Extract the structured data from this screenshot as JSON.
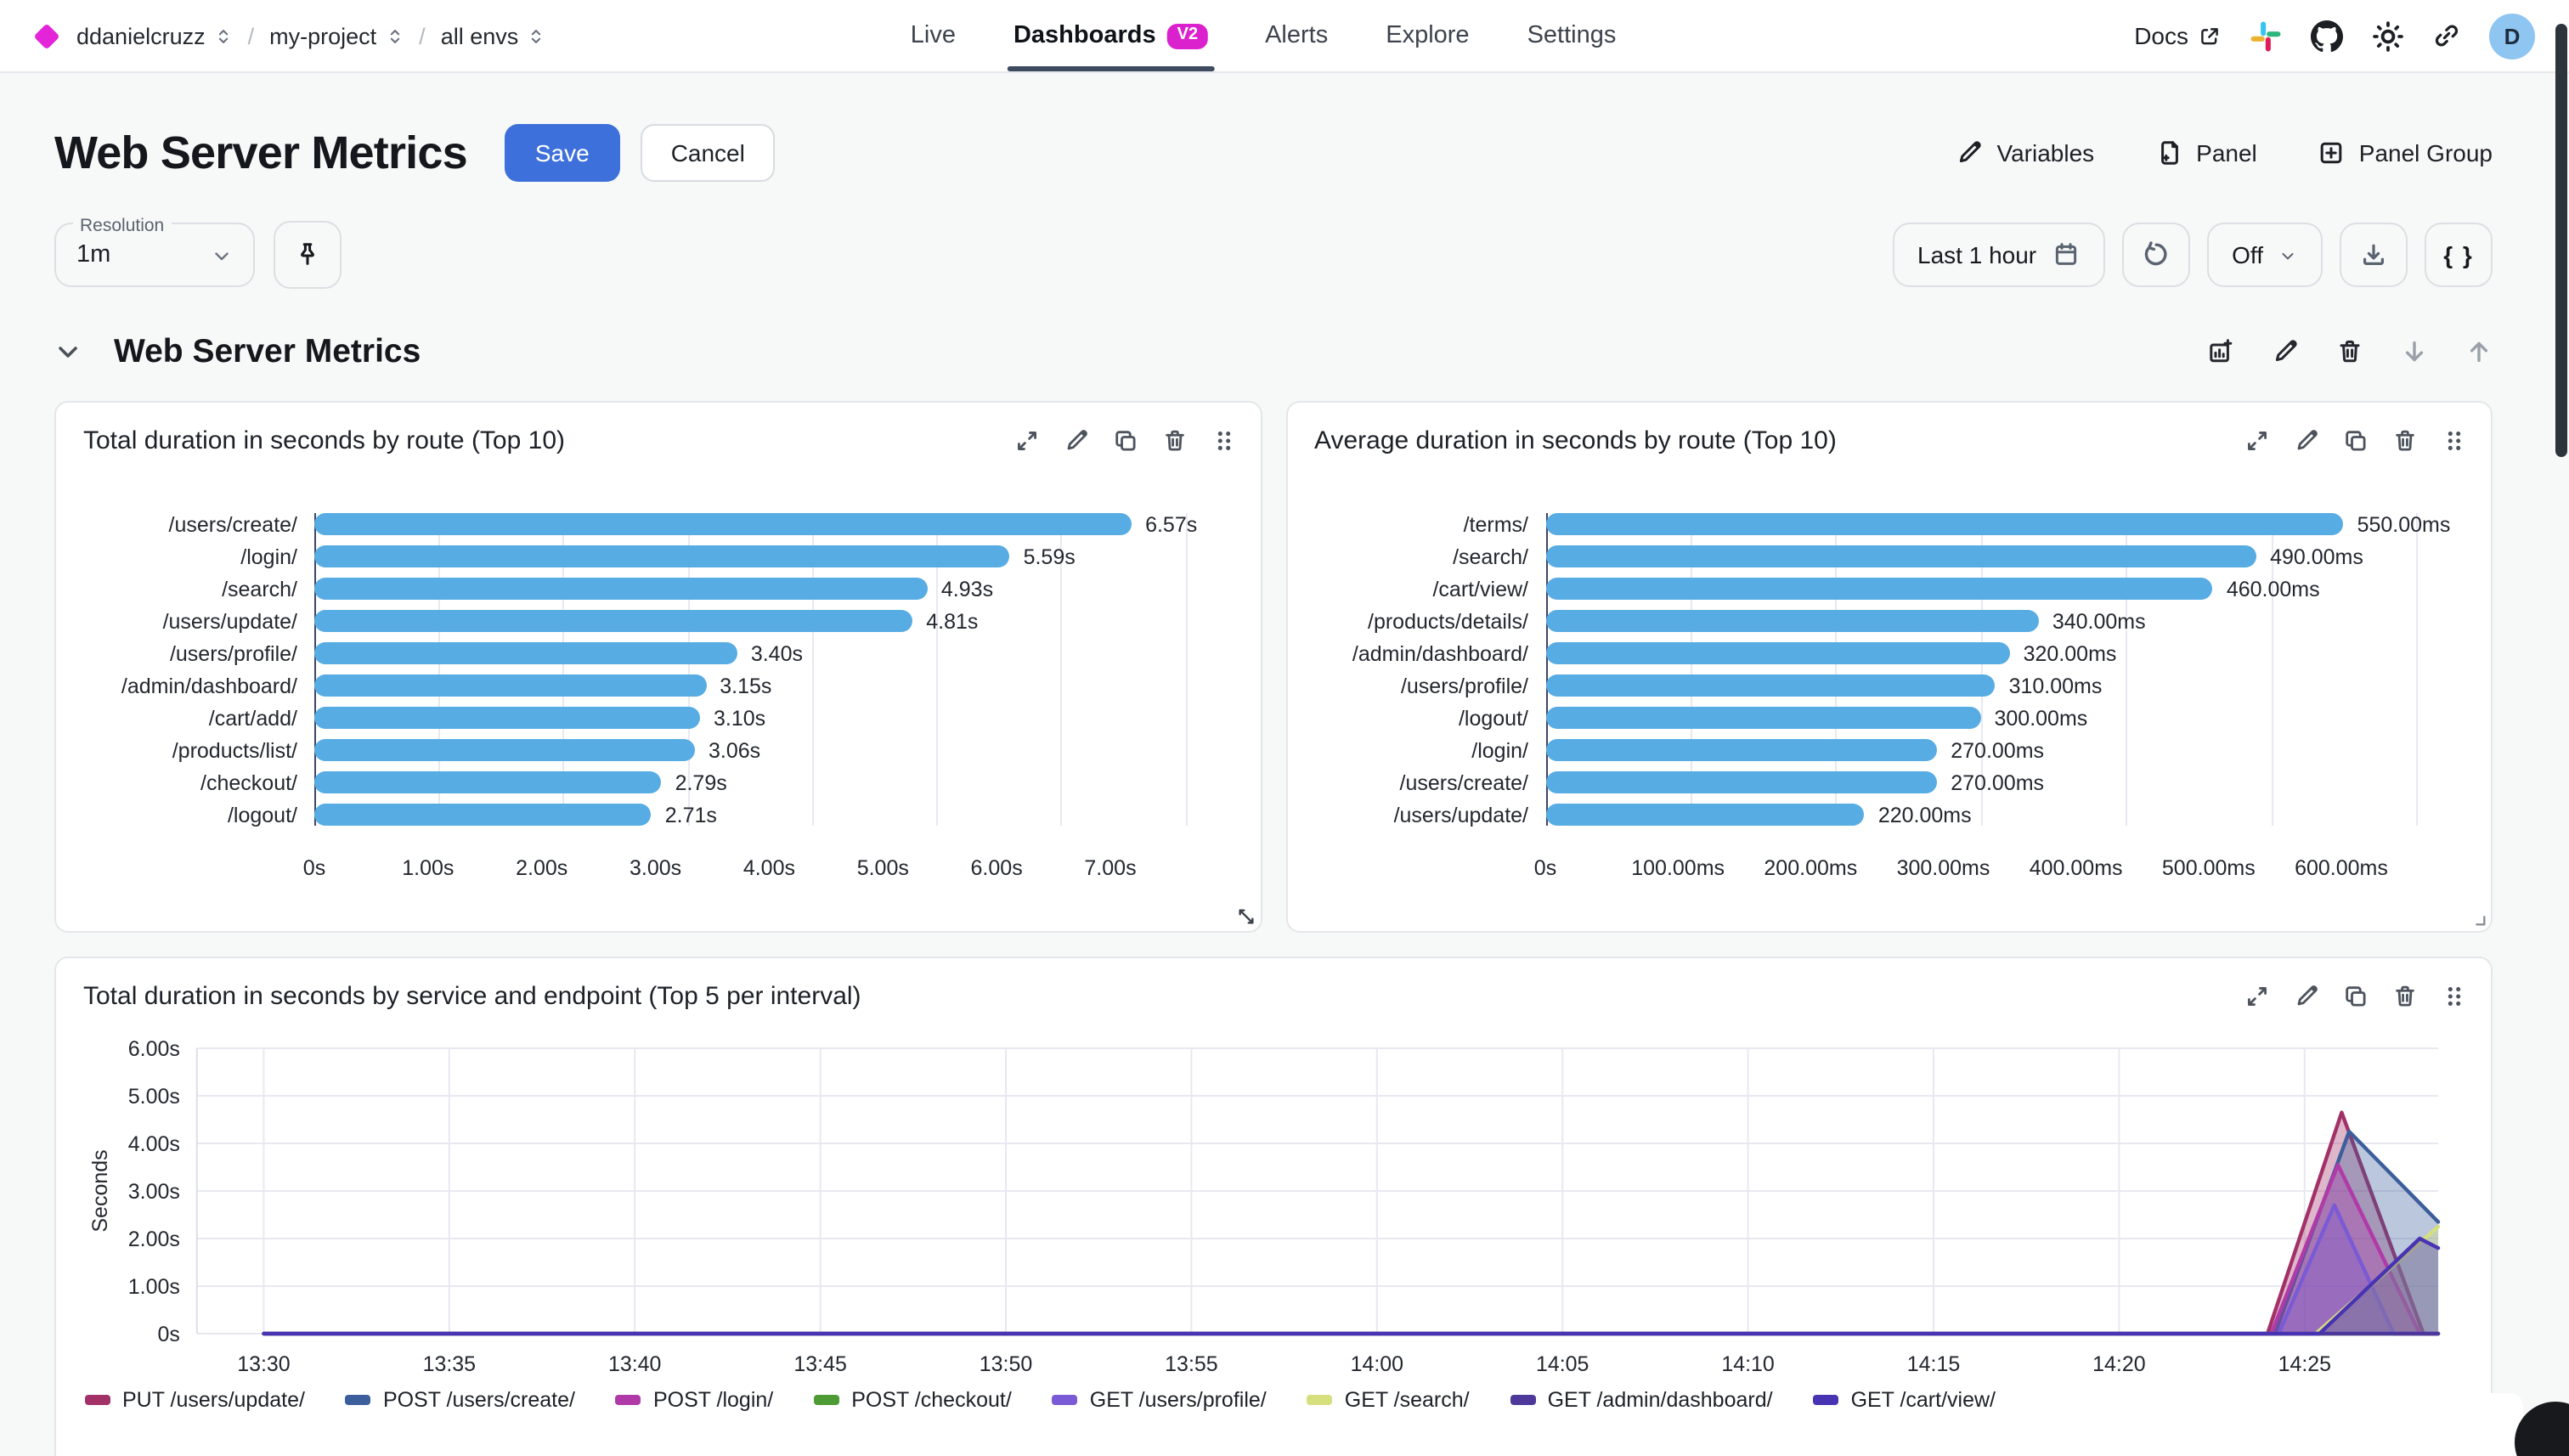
{
  "nav": {
    "breadcrumb": [
      {
        "label": "ddanielcruzz"
      },
      {
        "label": "my-project"
      },
      {
        "label": "all envs"
      }
    ],
    "tabs": [
      {
        "label": "Live",
        "active": false
      },
      {
        "label": "Dashboards",
        "badge": "V2",
        "active": true
      },
      {
        "label": "Alerts",
        "active": false
      },
      {
        "label": "Explore",
        "active": false
      },
      {
        "label": "Settings",
        "active": false
      }
    ],
    "docs_label": "Docs",
    "avatar_initial": "D"
  },
  "header": {
    "title": "Web Server Metrics",
    "save_label": "Save",
    "cancel_label": "Cancel",
    "actions": [
      {
        "icon": "pencil-icon",
        "label": "Variables"
      },
      {
        "icon": "file-plus-icon",
        "label": "Panel"
      },
      {
        "icon": "plus-square-icon",
        "label": "Panel Group"
      }
    ]
  },
  "controls": {
    "resolution_label": "Resolution",
    "resolution_value": "1m",
    "time_range": "Last 1 hour",
    "refresh_mode": "Off",
    "braces_label": "{ }"
  },
  "section": {
    "title": "Web Server Metrics",
    "icons": [
      "chart-plus",
      "pencil",
      "trash",
      "arrow-down",
      "arrow-up"
    ]
  },
  "panel_action_icons": [
    "expand",
    "pencil",
    "copy",
    "trash",
    "drag"
  ],
  "colors": {
    "accent_blue": "#3D70DA",
    "brand_magenta": "#E324D8",
    "badge_magenta": "#DB21CE",
    "bar_blue": "#57ACE4"
  },
  "chart_data": [
    {
      "type": "bar",
      "orientation": "horizontal",
      "title": "Total duration in seconds by route (Top 10)",
      "categories": [
        "/users/create/",
        "/login/",
        "/search/",
        "/users/update/",
        "/users/profile/",
        "/admin/dashboard/",
        "/cart/add/",
        "/products/list/",
        "/checkout/",
        "/logout/"
      ],
      "values": [
        6.57,
        5.59,
        4.93,
        4.81,
        3.4,
        3.15,
        3.1,
        3.06,
        2.79,
        2.71
      ],
      "value_labels": [
        "6.57s",
        "5.59s",
        "4.93s",
        "4.81s",
        "3.40s",
        "3.15s",
        "3.10s",
        "3.06s",
        "2.79s",
        "2.71s"
      ],
      "x_ticks": [
        "0s",
        "1.00s",
        "2.00s",
        "3.00s",
        "4.00s",
        "5.00s",
        "6.00s",
        "7.00s"
      ],
      "x_max": 7,
      "bar_color": "#57ACE4"
    },
    {
      "type": "bar",
      "orientation": "horizontal",
      "title": "Average duration in seconds by route (Top 10)",
      "categories": [
        "/terms/",
        "/search/",
        "/cart/view/",
        "/products/details/",
        "/admin/dashboard/",
        "/users/profile/",
        "/logout/",
        "/login/",
        "/users/create/",
        "/users/update/"
      ],
      "values": [
        550,
        490,
        460,
        340,
        320,
        310,
        300,
        270,
        270,
        220
      ],
      "value_labels": [
        "550.00ms",
        "490.00ms",
        "460.00ms",
        "340.00ms",
        "320.00ms",
        "310.00ms",
        "300.00ms",
        "270.00ms",
        "270.00ms",
        "220.00ms"
      ],
      "x_ticks": [
        "0s",
        "100.00ms",
        "200.00ms",
        "300.00ms",
        "400.00ms",
        "500.00ms",
        "600.00ms"
      ],
      "x_max": 600,
      "bar_color": "#57ACE4"
    },
    {
      "type": "area",
      "title": "Total duration in seconds by service and endpoint (Top 5 per interval)",
      "ylabel": "Seconds",
      "y_ticks": [
        "6.00s",
        "5.00s",
        "4.00s",
        "3.00s",
        "2.00s",
        "1.00s",
        "0s"
      ],
      "y_max": 6,
      "x_ticks": [
        "13:30",
        "13:35",
        "13:40",
        "13:45",
        "13:50",
        "13:55",
        "14:00",
        "14:05",
        "14:10",
        "14:15",
        "14:20",
        "14:25"
      ],
      "x_tick_minutes": [
        0,
        5,
        10,
        15,
        20,
        25,
        30,
        35,
        40,
        45,
        50,
        55
      ],
      "x_domain_minutes": [
        -1.8,
        58.6
      ],
      "grid": true,
      "legend_position": "bottom",
      "series": [
        {
          "name": "PUT /users/update/",
          "color": "#A23168",
          "points": [
            [
              0,
              0
            ],
            [
              54,
              0
            ],
            [
              56,
              4.65
            ],
            [
              58.2,
              0
            ],
            [
              58.6,
              0
            ]
          ]
        },
        {
          "name": "POST /users/create/",
          "color": "#3D5E9C",
          "points": [
            [
              0,
              0
            ],
            [
              54.2,
              0
            ],
            [
              56.2,
              4.25
            ],
            [
              58.6,
              2.35
            ]
          ]
        },
        {
          "name": "POST /login/",
          "color": "#B03AA8",
          "points": [
            [
              0,
              0
            ],
            [
              54.1,
              0
            ],
            [
              55.9,
              3.55
            ],
            [
              58.1,
              0
            ],
            [
              58.6,
              0
            ]
          ]
        },
        {
          "name": "POST /checkout/",
          "color": "#4E9A35",
          "points": [
            [
              0,
              0
            ],
            [
              58.6,
              0
            ]
          ]
        },
        {
          "name": "GET /users/profile/",
          "color": "#7A5AD5",
          "points": [
            [
              0,
              0
            ],
            [
              54.3,
              0
            ],
            [
              55.8,
              2.7
            ],
            [
              57.4,
              0
            ],
            [
              58.6,
              0
            ]
          ]
        },
        {
          "name": "GET /search/",
          "color": "#D6DF7D",
          "points": [
            [
              0,
              0
            ],
            [
              55.3,
              0
            ],
            [
              58.6,
              2.25
            ]
          ]
        },
        {
          "name": "GET /admin/dashboard/",
          "color": "#4E3899",
          "points": [
            [
              0,
              0
            ],
            [
              58.6,
              0
            ]
          ]
        },
        {
          "name": "GET /cart/view/",
          "color": "#4833B3",
          "points": [
            [
              0,
              0
            ],
            [
              55.4,
              0
            ],
            [
              58.1,
              2.0
            ],
            [
              58.6,
              1.8
            ]
          ]
        }
      ]
    }
  ]
}
